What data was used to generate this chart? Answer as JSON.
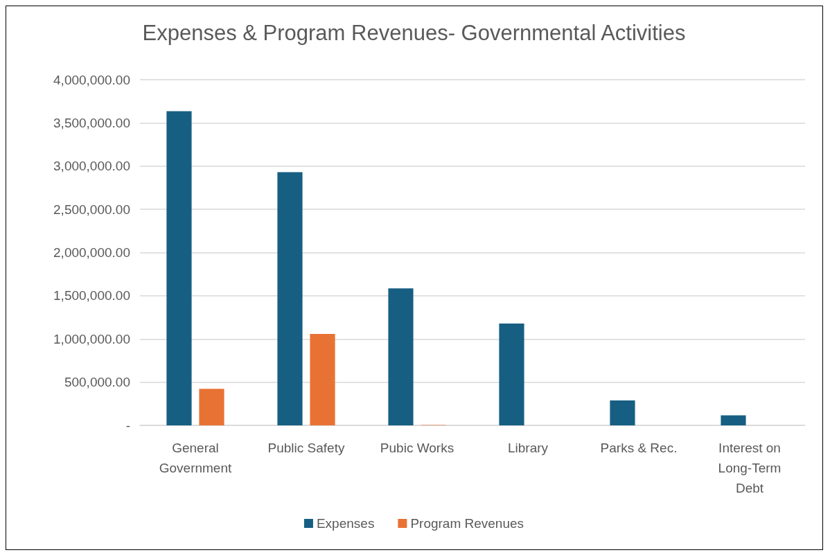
{
  "chart_data": {
    "type": "bar",
    "title": "Expenses & Program Revenues- Governmental Activities",
    "categories": [
      "General\nGovernment",
      "Public Safety",
      "Pubic Works",
      "Library",
      "Parks & Rec.",
      "Interest on\nLong-Term\nDebt"
    ],
    "series": [
      {
        "name": "Expenses",
        "color": "#175f82",
        "values": [
          3636000,
          2930000,
          1585000,
          1178000,
          289000,
          117000
        ]
      },
      {
        "name": "Program Revenues",
        "color": "#e87234",
        "values": [
          423000,
          1059000,
          5000,
          0,
          0,
          0
        ]
      }
    ],
    "ylim": [
      0,
      4000000
    ],
    "yticks": [
      {
        "value": 0,
        "label": "-"
      },
      {
        "value": 500000,
        "label": "500,000.00"
      },
      {
        "value": 1000000,
        "label": "1,000,000.00"
      },
      {
        "value": 1500000,
        "label": "1,500,000.00"
      },
      {
        "value": 2000000,
        "label": "2,000,000.00"
      },
      {
        "value": 2500000,
        "label": "2,500,000.00"
      },
      {
        "value": 3000000,
        "label": "3,000,000.00"
      },
      {
        "value": 3500000,
        "label": "3,500,000.00"
      },
      {
        "value": 4000000,
        "label": "4,000,000.00"
      }
    ],
    "grid": "y",
    "legend": "bottom"
  }
}
